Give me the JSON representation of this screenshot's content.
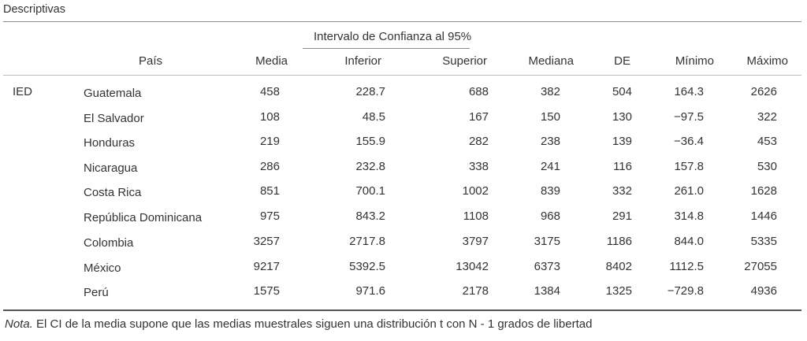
{
  "title": "Descriptivas",
  "group_header": "Intervalo de Confianza al 95%",
  "columns": [
    "País",
    "Media",
    "Inferior",
    "Superior",
    "Mediana",
    "DE",
    "Mínimo",
    "Máximo"
  ],
  "variable": "IED",
  "rows": [
    {
      "pais": "Guatemala",
      "media": "458",
      "inferior": "228.7",
      "superior": "688",
      "mediana": "382",
      "de": "504",
      "minimo": "164.3",
      "maximo": "2626"
    },
    {
      "pais": "El Salvador",
      "media": "108",
      "inferior": "48.5",
      "superior": "167",
      "mediana": "150",
      "de": "130",
      "minimo": "−97.5",
      "maximo": "322"
    },
    {
      "pais": "Honduras",
      "media": "219",
      "inferior": "155.9",
      "superior": "282",
      "mediana": "238",
      "de": "139",
      "minimo": "−36.4",
      "maximo": "453"
    },
    {
      "pais": "Nicaragua",
      "media": "286",
      "inferior": "232.8",
      "superior": "338",
      "mediana": "241",
      "de": "116",
      "minimo": "157.8",
      "maximo": "530"
    },
    {
      "pais": "Costa Rica",
      "media": "851",
      "inferior": "700.1",
      "superior": "1002",
      "mediana": "839",
      "de": "332",
      "minimo": "261.0",
      "maximo": "1628"
    },
    {
      "pais": "República Dominicana",
      "media": "975",
      "inferior": "843.2",
      "superior": "1108",
      "mediana": "968",
      "de": "291",
      "minimo": "314.8",
      "maximo": "1446"
    },
    {
      "pais": "Colombia",
      "media": "3257",
      "inferior": "2717.8",
      "superior": "3797",
      "mediana": "3175",
      "de": "1186",
      "minimo": "844.0",
      "maximo": "5335"
    },
    {
      "pais": "México",
      "media": "9217",
      "inferior": "5392.5",
      "superior": "13042",
      "mediana": "6373",
      "de": "8402",
      "minimo": "1112.5",
      "maximo": "27055"
    },
    {
      "pais": "Perú",
      "media": "1575",
      "inferior": "971.6",
      "superior": "2178",
      "mediana": "1384",
      "de": "1325",
      "minimo": "−729.8",
      "maximo": "4936"
    }
  ],
  "note": {
    "label": "Nota.",
    "text": " El CI de la media supone que las medias muestrales siguen una distribución t con N - 1 grados de libertad"
  }
}
